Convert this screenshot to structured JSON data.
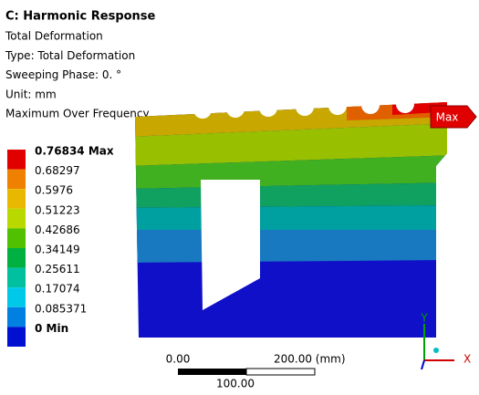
{
  "header": {
    "title": "C: Harmonic Response",
    "lines": [
      "Total Deformation",
      "Type: Total Deformation",
      "Sweeping Phase: 0. °",
      "Unit: mm",
      "Maximum Over Frequency"
    ]
  },
  "legend": [
    {
      "label": "0.76834 Max",
      "color": "#e00000"
    },
    {
      "label": "0.68297",
      "color": "#f08000"
    },
    {
      "label": "0.5976",
      "color": "#e8b800"
    },
    {
      "label": "0.51223",
      "color": "#b8d800"
    },
    {
      "label": "0.42686",
      "color": "#50c000"
    },
    {
      "label": "0.34149",
      "color": "#00b040"
    },
    {
      "label": "0.25611",
      "color": "#00c0a0"
    },
    {
      "label": "0.17074",
      "color": "#00c8e8"
    },
    {
      "label": "0.085371",
      "color": "#0080e0"
    },
    {
      "label": "0 Min",
      "color": "#0010d0"
    }
  ],
  "max_tag": "Max",
  "scale_bar": {
    "left": "0.00",
    "right": "200.00 (mm)",
    "middle": "100.00"
  },
  "triad": {
    "y": "Y",
    "x": "X"
  }
}
